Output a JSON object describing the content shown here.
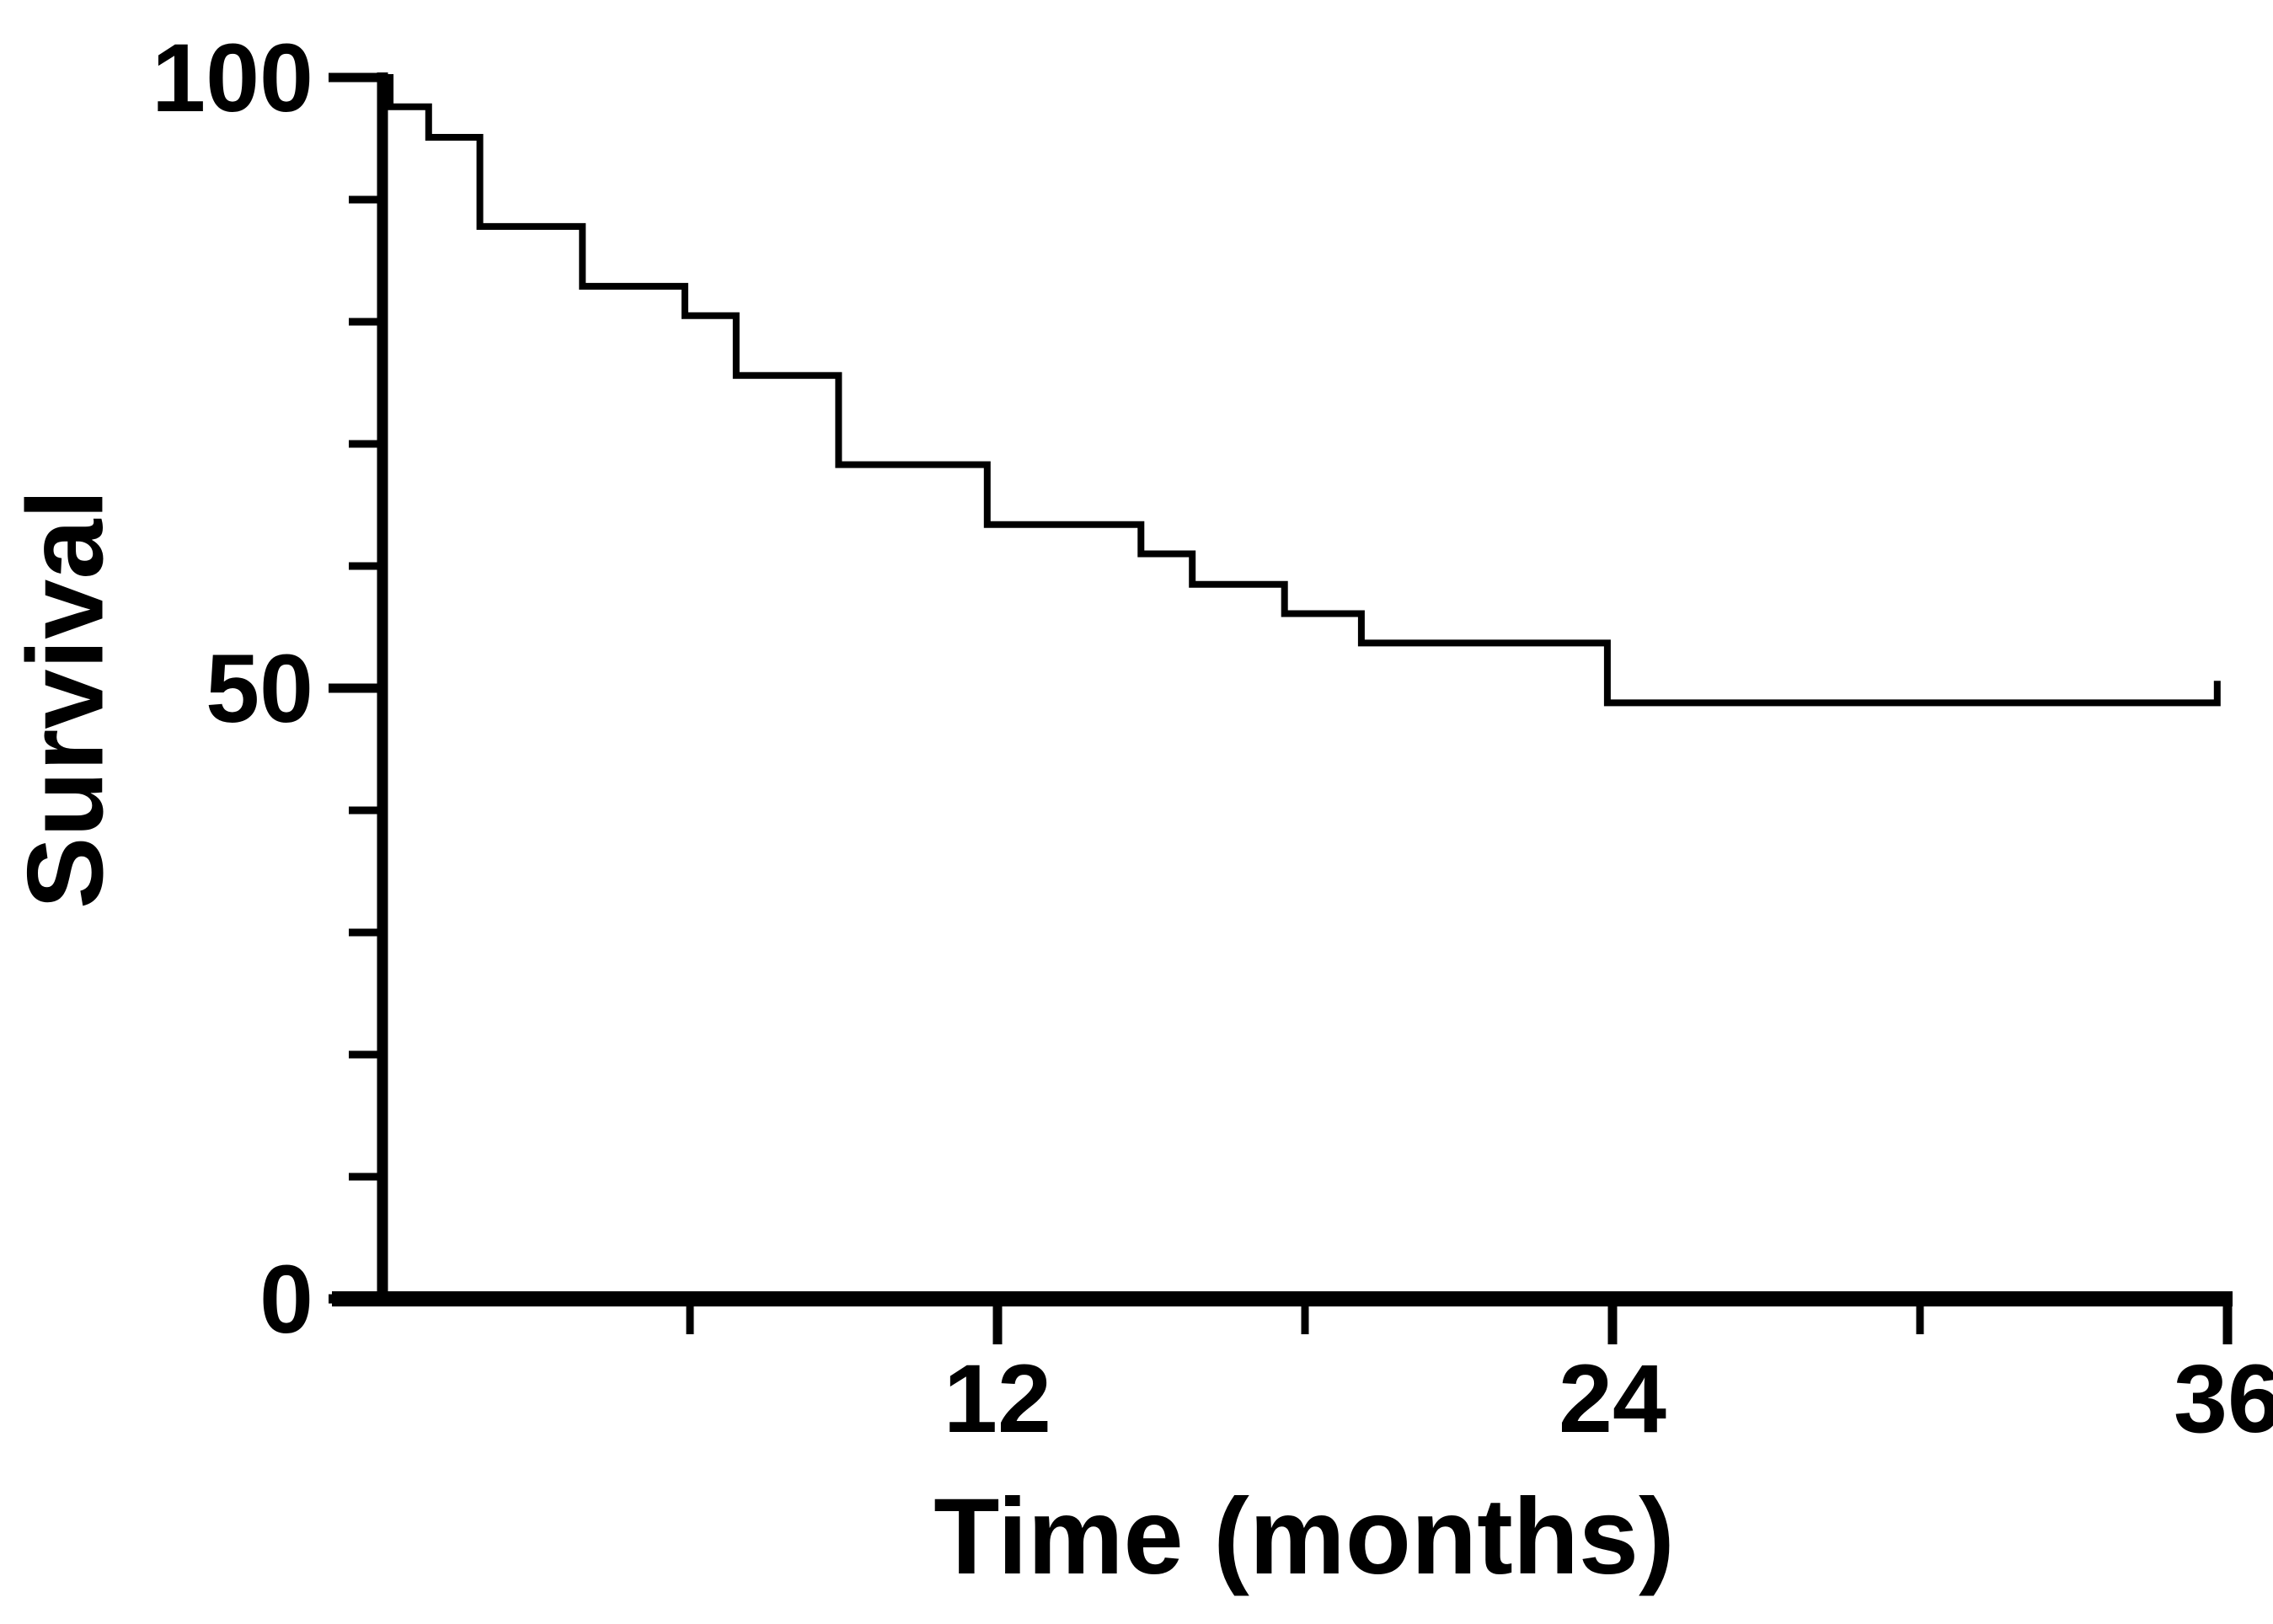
{
  "figure": {
    "background_color": "#ffffff",
    "line_color": "#000000",
    "text_color": "#000000"
  },
  "chart_data": {
    "type": "line",
    "subtype": "kaplan-meier-step-curve",
    "title": "",
    "xlabel": "Time (months)",
    "ylabel": "Survival",
    "xlim": [
      0,
      36
    ],
    "ylim": [
      0,
      100
    ],
    "grid": false,
    "legend": false,
    "x_major_ticks": [
      12,
      24,
      36
    ],
    "x_major_tick_labels": [
      "12",
      "24",
      "36"
    ],
    "x_minor_ticks": [
      6,
      18,
      30
    ],
    "y_major_ticks": [
      100,
      50,
      0
    ],
    "y_major_tick_labels": [
      "100",
      "50",
      "0"
    ],
    "y_minor_ticks": [
      10,
      20,
      30,
      40,
      60,
      70,
      80,
      90
    ],
    "series": [
      {
        "name": "survival-curve",
        "step_times_months": [
          0,
          0.15,
          0.9,
          1.9,
          3.9,
          5.9,
          6.9,
          8.9,
          11.8,
          14.8,
          15.8,
          17.6,
          19.1,
          23.9
        ],
        "step_survival_percent": [
          100,
          97.6,
          95.1,
          87.8,
          82.9,
          80.5,
          75.6,
          68.3,
          63.4,
          61.0,
          58.5,
          56.1,
          53.7,
          48.8
        ],
        "end_time_months": 35.8,
        "end_censor_tick": true,
        "end_censor_tick_percent": 1.8
      }
    ]
  }
}
